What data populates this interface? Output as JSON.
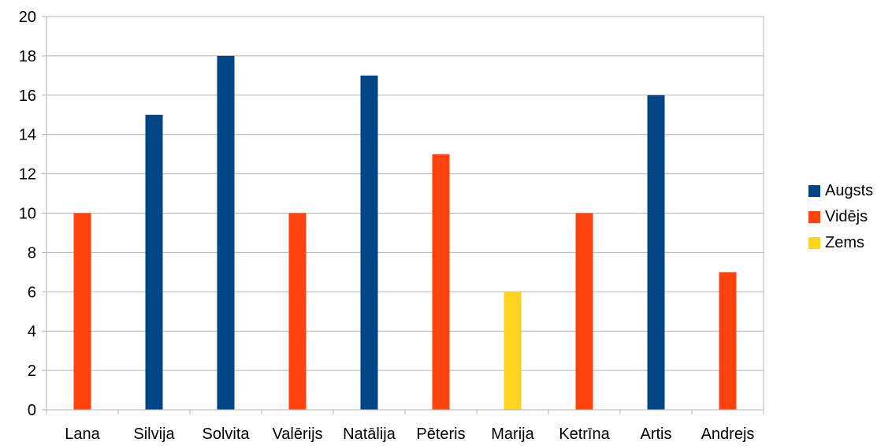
{
  "chart_data": {
    "type": "bar",
    "categories": [
      "Lana",
      "Silvija",
      "Solvita",
      "Valērijs",
      "Natālija",
      "Pēteris",
      "Marija",
      "Ketrīna",
      "Artis",
      "Andrejs"
    ],
    "series": [
      {
        "name": "Augsts",
        "color": "#004586",
        "values": [
          null,
          15,
          18,
          null,
          17,
          null,
          null,
          null,
          16,
          null
        ]
      },
      {
        "name": "Vidējs",
        "color": "#ff420e",
        "values": [
          10,
          null,
          null,
          10,
          null,
          13,
          null,
          10,
          null,
          7
        ]
      },
      {
        "name": "Zems",
        "color": "#ffd320",
        "values": [
          null,
          null,
          null,
          null,
          null,
          null,
          6,
          null,
          null,
          null
        ]
      }
    ],
    "ylim": [
      0,
      20
    ],
    "yticks": [
      "0",
      "2",
      "4",
      "6",
      "8",
      "10",
      "12",
      "14",
      "16",
      "18",
      "20"
    ],
    "grid": true,
    "legend_position": "right"
  }
}
